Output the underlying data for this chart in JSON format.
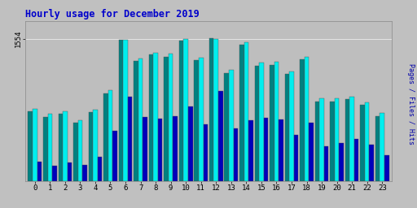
{
  "title": "Hourly usage for December 2019",
  "hours": [
    0,
    1,
    2,
    3,
    4,
    5,
    6,
    7,
    8,
    9,
    10,
    11,
    12,
    13,
    14,
    15,
    16,
    17,
    18,
    19,
    20,
    21,
    22,
    23
  ],
  "pages": [
    760,
    700,
    730,
    640,
    750,
    960,
    1540,
    1310,
    1380,
    1360,
    1530,
    1320,
    1560,
    1180,
    1490,
    1260,
    1270,
    1170,
    1330,
    870,
    870,
    890,
    830,
    710
  ],
  "files": [
    790,
    730,
    760,
    660,
    780,
    990,
    1545,
    1340,
    1400,
    1390,
    1550,
    1350,
    1555,
    1210,
    1520,
    1290,
    1300,
    1200,
    1360,
    900,
    900,
    920,
    860,
    740
  ],
  "hits": [
    210,
    170,
    200,
    175,
    260,
    550,
    920,
    700,
    680,
    710,
    810,
    620,
    980,
    575,
    660,
    690,
    670,
    500,
    640,
    380,
    415,
    455,
    395,
    280
  ],
  "color_pages": "#008080",
  "color_files": "#00EEEE",
  "color_hits": "#0000BB",
  "bg_color": "#C0C0C0",
  "plot_bg": "#BEBEBE",
  "ymax": 1750,
  "ytick_val": 1554,
  "bar_width": 0.3,
  "title_color": "#0000CC",
  "title_fontsize": 8.5
}
